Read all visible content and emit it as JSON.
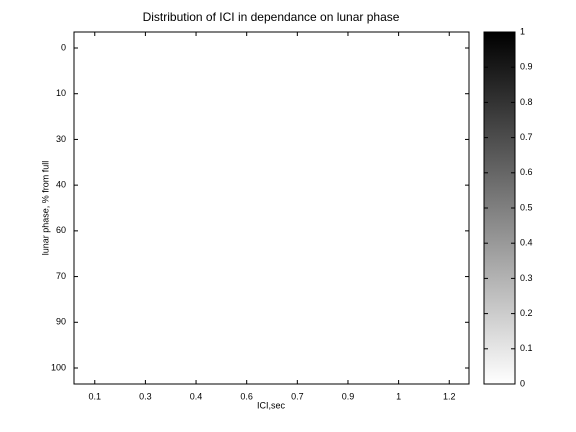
{
  "chart_data": {
    "type": "heatmap",
    "title": "Distribution of ICI in dependance on lunar phase",
    "x_label": "ICI,sec",
    "y_label": "lunar phase, % from full",
    "xlim": [
      0.59,
      8.39
    ],
    "xticks": [
      {
        "value": 1,
        "label": "0.1"
      },
      {
        "value": 2,
        "label": "0.3"
      },
      {
        "value": 3,
        "label": "0.4"
      },
      {
        "value": 4,
        "label": "0.6"
      },
      {
        "value": 5,
        "label": "0.7"
      },
      {
        "value": 6,
        "label": "0.9"
      },
      {
        "value": 7,
        "label": "1"
      },
      {
        "value": 8,
        "label": "1.2"
      }
    ],
    "ylim": [
      0.65,
      8.35
    ],
    "y_direction": "reverse",
    "yticks": [
      {
        "value": 1,
        "label": "0"
      },
      {
        "value": 2,
        "label": "10"
      },
      {
        "value": 3,
        "label": "30"
      },
      {
        "value": 4,
        "label": "40"
      },
      {
        "value": 5,
        "label": "60"
      },
      {
        "value": 6,
        "label": "70"
      },
      {
        "value": 7,
        "label": "90"
      },
      {
        "value": 8,
        "label": "100"
      }
    ],
    "colormap": [
      "#ffffff",
      "#000000"
    ],
    "clim": [
      0,
      1
    ],
    "cticks": [
      0,
      0.1,
      0.2,
      0.3,
      0.4,
      0.5,
      0.6,
      0.7,
      0.8,
      0.9,
      1
    ]
  }
}
